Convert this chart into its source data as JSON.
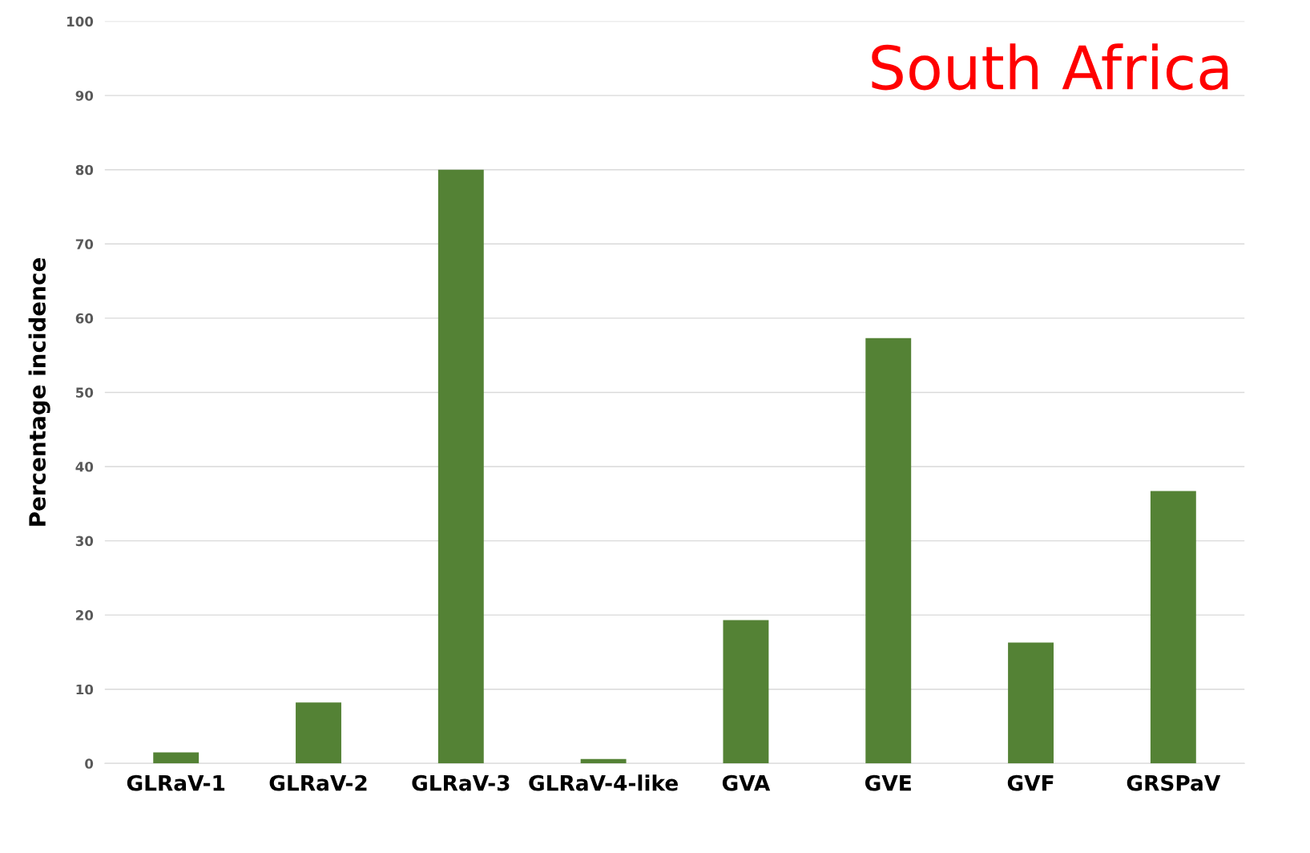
{
  "chart_data": {
    "type": "bar",
    "title": "South Africa",
    "ylabel": "Percentage incidence",
    "categories": [
      "GLRaV-1",
      "GLRaV-2",
      "GLRaV-3",
      "GLRaV-4-like",
      "GVA",
      "GVE",
      "GVF",
      "GRSPaV"
    ],
    "values": [
      1.5,
      8.2,
      80.0,
      0.6,
      19.3,
      57.3,
      16.3,
      36.7
    ],
    "color": "#548235",
    "ylim": [
      0,
      100
    ],
    "yticks": [
      0,
      10,
      20,
      30,
      40,
      50,
      60,
      70,
      80,
      90,
      100
    ],
    "grid": "y"
  }
}
